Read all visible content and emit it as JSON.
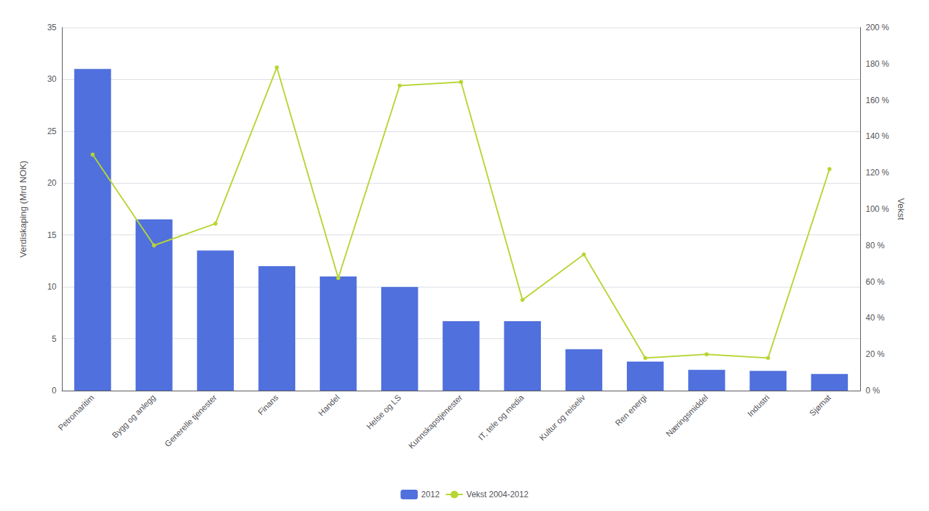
{
  "chart_data": {
    "type": "bar",
    "categories": [
      "Petromaritim",
      "Bygg og anlegg",
      "Generelle tjenester",
      "Finans",
      "Handel",
      "Helse og LS",
      "Kunnskapstjenester",
      "IT, tele og media",
      "Kultur og reiseliv",
      "Ren energi",
      "Næringsmiddel",
      "Industri",
      "Sjømat"
    ],
    "series": [
      {
        "name": "2012",
        "type": "bar",
        "values": [
          31.0,
          16.5,
          13.5,
          12.0,
          11.0,
          10.0,
          6.7,
          6.7,
          4.0,
          2.8,
          2.0,
          1.9,
          1.6
        ]
      },
      {
        "name": "Vekst 2004-2012",
        "type": "line",
        "axis": "y2",
        "values": [
          130,
          80,
          92,
          178,
          62,
          168,
          170,
          50,
          75,
          18,
          20,
          18,
          122
        ]
      }
    ],
    "ylabel": "Verdiskaping (Mrd NOK)",
    "y2label": "Vekst",
    "ylim": [
      0,
      35
    ],
    "yticks": [
      0,
      5,
      10,
      15,
      20,
      25,
      30,
      35
    ],
    "y2lim": [
      0,
      200
    ],
    "y2ticks": [
      {
        "value": 0,
        "label": "0 %"
      },
      {
        "value": 20,
        "label": "20 %"
      },
      {
        "value": 40,
        "label": "40 %"
      },
      {
        "value": 60,
        "label": "60 %"
      },
      {
        "value": 80,
        "label": "80 %"
      },
      {
        "value": 100,
        "label": "100 %"
      },
      {
        "value": 120,
        "label": "120 %"
      },
      {
        "value": 140,
        "label": "140 %"
      },
      {
        "value": 160,
        "label": "160 %"
      },
      {
        "value": 180,
        "label": "180 %"
      },
      {
        "value": 200,
        "label": "200 %"
      }
    ],
    "grid": true,
    "legend": "bottom"
  }
}
